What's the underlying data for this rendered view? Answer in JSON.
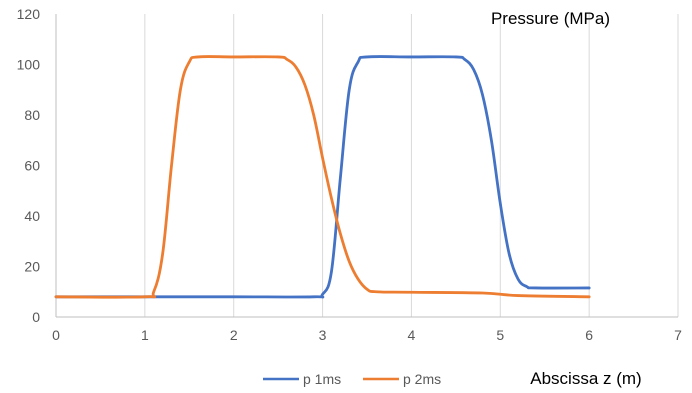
{
  "chart_data": {
    "type": "line",
    "xlabel": "Abscissa z (m)",
    "ylabel": "Pressure (MPa)",
    "xlim": [
      0,
      7
    ],
    "ylim": [
      0,
      120
    ],
    "x_ticks": [
      0,
      1,
      2,
      3,
      4,
      5,
      6,
      7
    ],
    "y_ticks": [
      0,
      20,
      40,
      60,
      80,
      100,
      120
    ],
    "grid": "vertical",
    "legend_position": "bottom",
    "colors": {
      "p_1ms": "#4472C4",
      "p_2ms": "#ED7D31",
      "grid": "#d9d9d9",
      "axis": "#bfbfbf"
    },
    "series": [
      {
        "name": "p 1ms",
        "color": "#4472C4",
        "x": [
          0,
          1,
          2,
          2.9,
          3.0,
          3.1,
          3.2,
          3.3,
          3.4,
          3.5,
          4.0,
          4.5,
          4.6,
          4.7,
          4.8,
          4.9,
          5.0,
          5.1,
          5.2,
          5.3,
          5.4,
          6.0
        ],
        "y": [
          8,
          8,
          8,
          8,
          9,
          18,
          55,
          90,
          101,
          103,
          103,
          103,
          102,
          98,
          88,
          70,
          45,
          25,
          15,
          12,
          11.5,
          11.5
        ]
      },
      {
        "name": "p 2ms",
        "color": "#ED7D31",
        "x": [
          0,
          1.0,
          1.1,
          1.2,
          1.3,
          1.4,
          1.5,
          1.6,
          2.0,
          2.5,
          2.6,
          2.7,
          2.8,
          2.9,
          3.0,
          3.1,
          3.2,
          3.3,
          3.4,
          3.5,
          3.6,
          4.0,
          4.8,
          5.2,
          6.0
        ],
        "y": [
          8,
          8,
          10,
          25,
          60,
          90,
          101,
          103,
          103,
          103,
          102,
          99,
          92,
          80,
          63,
          47,
          33,
          22,
          15,
          11,
          10,
          9.8,
          9.5,
          8.5,
          8
        ]
      }
    ]
  }
}
